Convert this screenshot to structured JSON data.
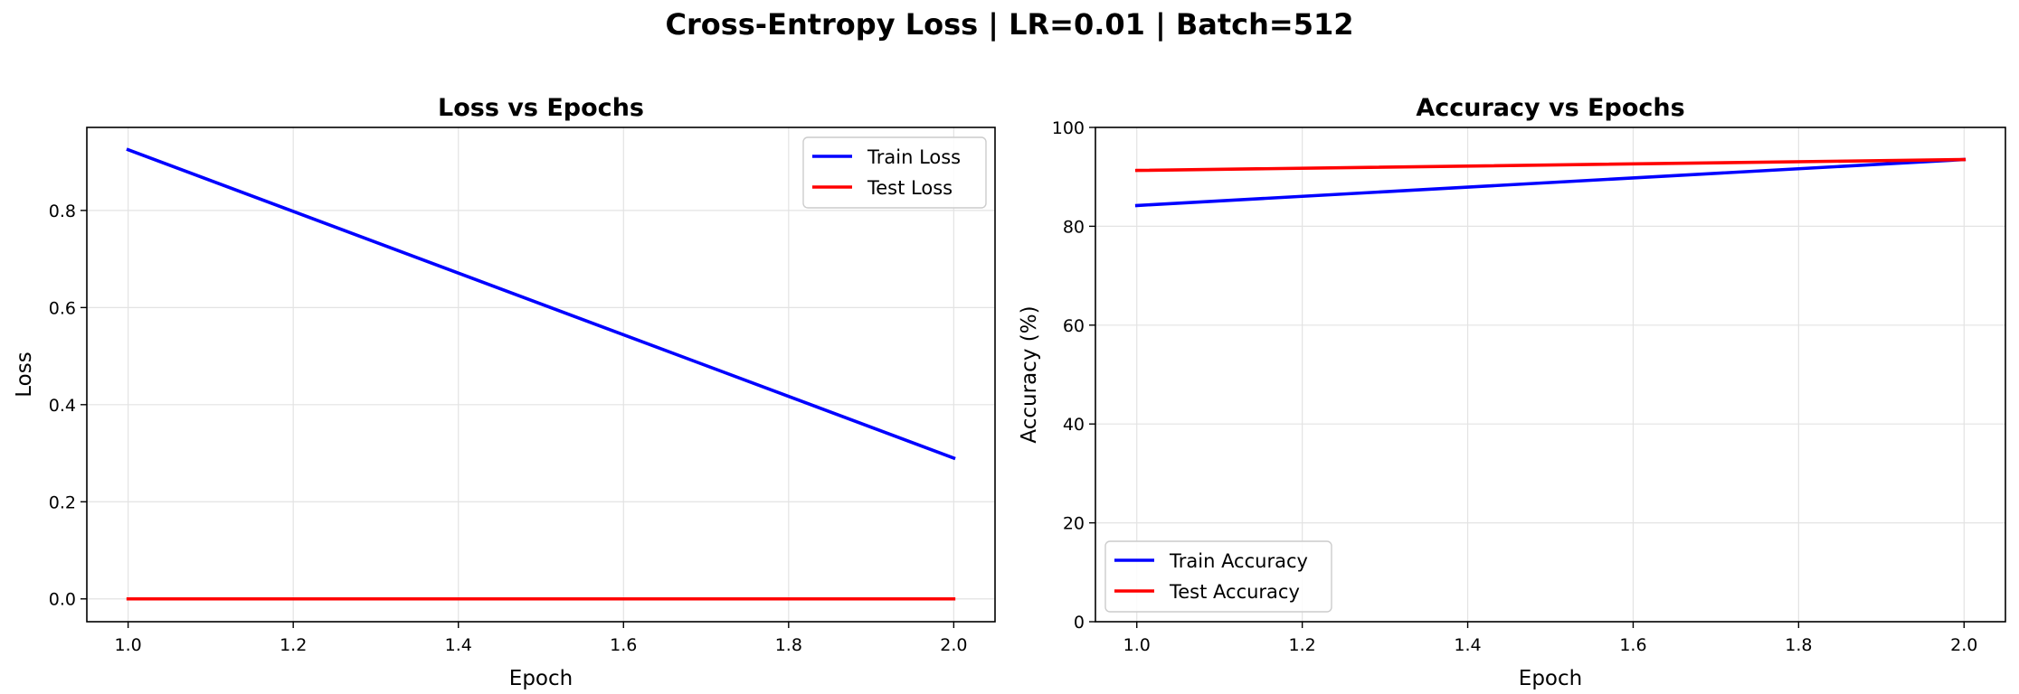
{
  "figure": {
    "suptitle": "Cross-Entropy Loss | LR=0.01 | Batch=512"
  },
  "chart_data": [
    {
      "type": "line",
      "title": "Loss vs Epochs",
      "xlabel": "Epoch",
      "ylabel": "Loss",
      "xlim": [
        0.95,
        2.05
      ],
      "ylim": [
        -0.047,
        0.971
      ],
      "xticks": [
        1.0,
        1.2,
        1.4,
        1.6,
        1.8,
        2.0
      ],
      "xtick_labels": [
        "1.0",
        "1.2",
        "1.4",
        "1.6",
        "1.8",
        "2.0"
      ],
      "yticks": [
        0.0,
        0.2,
        0.4,
        0.6,
        0.8
      ],
      "ytick_labels": [
        "0.0",
        "0.2",
        "0.4",
        "0.6",
        "0.8"
      ],
      "grid": true,
      "legend_position": "upper right",
      "x": [
        1.0,
        2.0
      ],
      "series": [
        {
          "name": "Train Loss",
          "color": "#0000ff",
          "values": [
            0.925,
            0.29
          ]
        },
        {
          "name": "Test Loss",
          "color": "#ff0000",
          "values": [
            0.0,
            0.0
          ]
        }
      ]
    },
    {
      "type": "line",
      "title": "Accuracy vs Epochs",
      "xlabel": "Epoch",
      "ylabel": "Accuracy (%)",
      "xlim": [
        0.95,
        2.05
      ],
      "ylim": [
        0,
        100
      ],
      "xticks": [
        1.0,
        1.2,
        1.4,
        1.6,
        1.8,
        2.0
      ],
      "xtick_labels": [
        "1.0",
        "1.2",
        "1.4",
        "1.6",
        "1.8",
        "2.0"
      ],
      "yticks": [
        0,
        20,
        40,
        60,
        80,
        100
      ],
      "ytick_labels": [
        "0",
        "20",
        "40",
        "60",
        "80",
        "100"
      ],
      "grid": true,
      "legend_position": "lower left",
      "x": [
        1.0,
        2.0
      ],
      "series": [
        {
          "name": "Train Accuracy",
          "color": "#0000ff",
          "values": [
            84.2,
            93.5
          ]
        },
        {
          "name": "Test Accuracy",
          "color": "#ff0000",
          "values": [
            91.3,
            93.5
          ]
        }
      ]
    }
  ]
}
